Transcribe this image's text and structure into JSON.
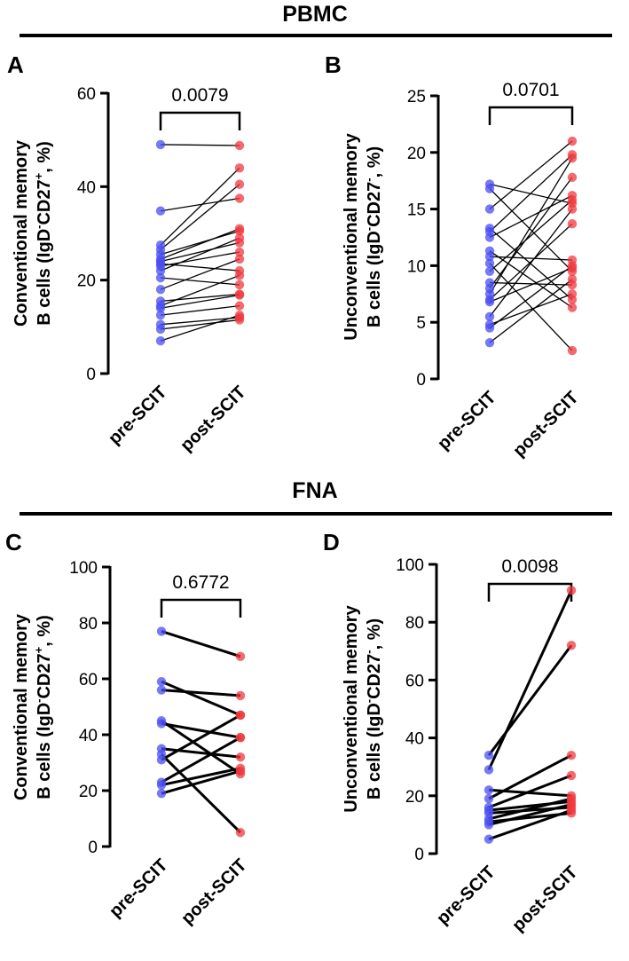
{
  "sections": [
    {
      "title": "PBMC"
    },
    {
      "title": "FNA"
    }
  ],
  "colors": {
    "pre": "#4a4ef0",
    "post": "#f0383d",
    "line": "#000000",
    "axis": "#000000"
  },
  "chart_data": [
    {
      "id": "A",
      "panel_label": "A",
      "type": "scatter",
      "subtype": "paired-dot",
      "categories": [
        "pre-SCIT",
        "post-SCIT"
      ],
      "ylabel": {
        "line1": "Conventional memory",
        "line2_start": "B cells (IgD",
        "sup1": "-",
        "mid": "CD27",
        "sup2": "+",
        "end": ", %)"
      },
      "ylim": [
        0,
        60
      ],
      "yticks": [
        0,
        20,
        40,
        60
      ],
      "bracket_label": "0.0079",
      "line_width": 1.3,
      "pairs": [
        [
          49,
          48.8
        ],
        [
          34.8,
          37.5
        ],
        [
          27.5,
          44
        ],
        [
          26.5,
          40.5
        ],
        [
          25.5,
          30.5
        ],
        [
          24.5,
          31
        ],
        [
          24,
          28
        ],
        [
          23.5,
          22
        ],
        [
          23,
          26
        ],
        [
          22,
          29
        ],
        [
          20.5,
          19
        ],
        [
          18,
          24.5
        ],
        [
          15.5,
          17
        ],
        [
          14.5,
          21
        ],
        [
          14,
          16.8
        ],
        [
          12.5,
          14.5
        ],
        [
          10.5,
          12
        ],
        [
          9.5,
          11.5
        ],
        [
          7,
          12.5
        ]
      ]
    },
    {
      "id": "B",
      "panel_label": "B",
      "type": "scatter",
      "subtype": "paired-dot",
      "categories": [
        "pre-SCIT",
        "post-SCIT"
      ],
      "ylabel": {
        "line1": "Unconventional memory",
        "line2_start": "B cells (IgD",
        "sup1": "-",
        "mid": "CD27",
        "sup2": "-",
        "end": ", %)"
      },
      "ylim": [
        0,
        25
      ],
      "yticks": [
        0,
        5,
        10,
        15,
        20,
        25
      ],
      "bracket_label": "0.0701",
      "line_width": 1.3,
      "pairs": [
        [
          17.2,
          15.5
        ],
        [
          16.8,
          9.5
        ],
        [
          15,
          21
        ],
        [
          13.3,
          7
        ],
        [
          13,
          19.8
        ],
        [
          12.5,
          16.2
        ],
        [
          11.3,
          6.3
        ],
        [
          10.8,
          10.5
        ],
        [
          10.2,
          2.5
        ],
        [
          9.5,
          15.8
        ],
        [
          8.5,
          8.3
        ],
        [
          8,
          17.8
        ],
        [
          7.5,
          19.5
        ],
        [
          7,
          13.7
        ],
        [
          6.8,
          9.8
        ],
        [
          5.5,
          15
        ],
        [
          4.8,
          7.5
        ],
        [
          4.5,
          10
        ],
        [
          3.2,
          8.8
        ]
      ]
    },
    {
      "id": "C",
      "panel_label": "C",
      "type": "scatter",
      "subtype": "paired-dot",
      "categories": [
        "pre-SCIT",
        "post-SCIT"
      ],
      "ylabel": {
        "line1": "Conventional memory",
        "line2_start": "B cells (IgD",
        "sup1": "-",
        "mid": "CD27",
        "sup2": "+",
        "end": ", %)"
      },
      "ylim": [
        0,
        100
      ],
      "yticks": [
        0,
        20,
        40,
        60,
        80,
        100
      ],
      "bracket_label": "0.6772",
      "line_width": 3,
      "pairs": [
        [
          77,
          68
        ],
        [
          59,
          47
        ],
        [
          56,
          54
        ],
        [
          45,
          26
        ],
        [
          44,
          39
        ],
        [
          35,
          32
        ],
        [
          33,
          5
        ],
        [
          31,
          47
        ],
        [
          23,
          39
        ],
        [
          22,
          28
        ],
        [
          19,
          27
        ]
      ]
    },
    {
      "id": "D",
      "panel_label": "D",
      "type": "scatter",
      "subtype": "paired-dot",
      "categories": [
        "pre-SCIT",
        "post-SCIT"
      ],
      "ylabel": {
        "line1": "Unconventional memory",
        "line2_start": "B cells (IgD",
        "sup1": "-",
        "mid": "CD27",
        "sup2": "-",
        "end": ", %)"
      },
      "ylim": [
        0,
        100
      ],
      "yticks": [
        0,
        20,
        40,
        60,
        80,
        100
      ],
      "bracket_label": "0.0098",
      "line_width": 3,
      "pairs": [
        [
          34,
          72
        ],
        [
          29,
          91
        ],
        [
          22,
          20
        ],
        [
          19,
          34
        ],
        [
          16,
          27
        ],
        [
          15,
          18
        ],
        [
          14,
          16
        ],
        [
          12,
          19
        ],
        [
          11,
          14
        ],
        [
          10,
          17
        ],
        [
          5,
          15
        ]
      ]
    }
  ]
}
